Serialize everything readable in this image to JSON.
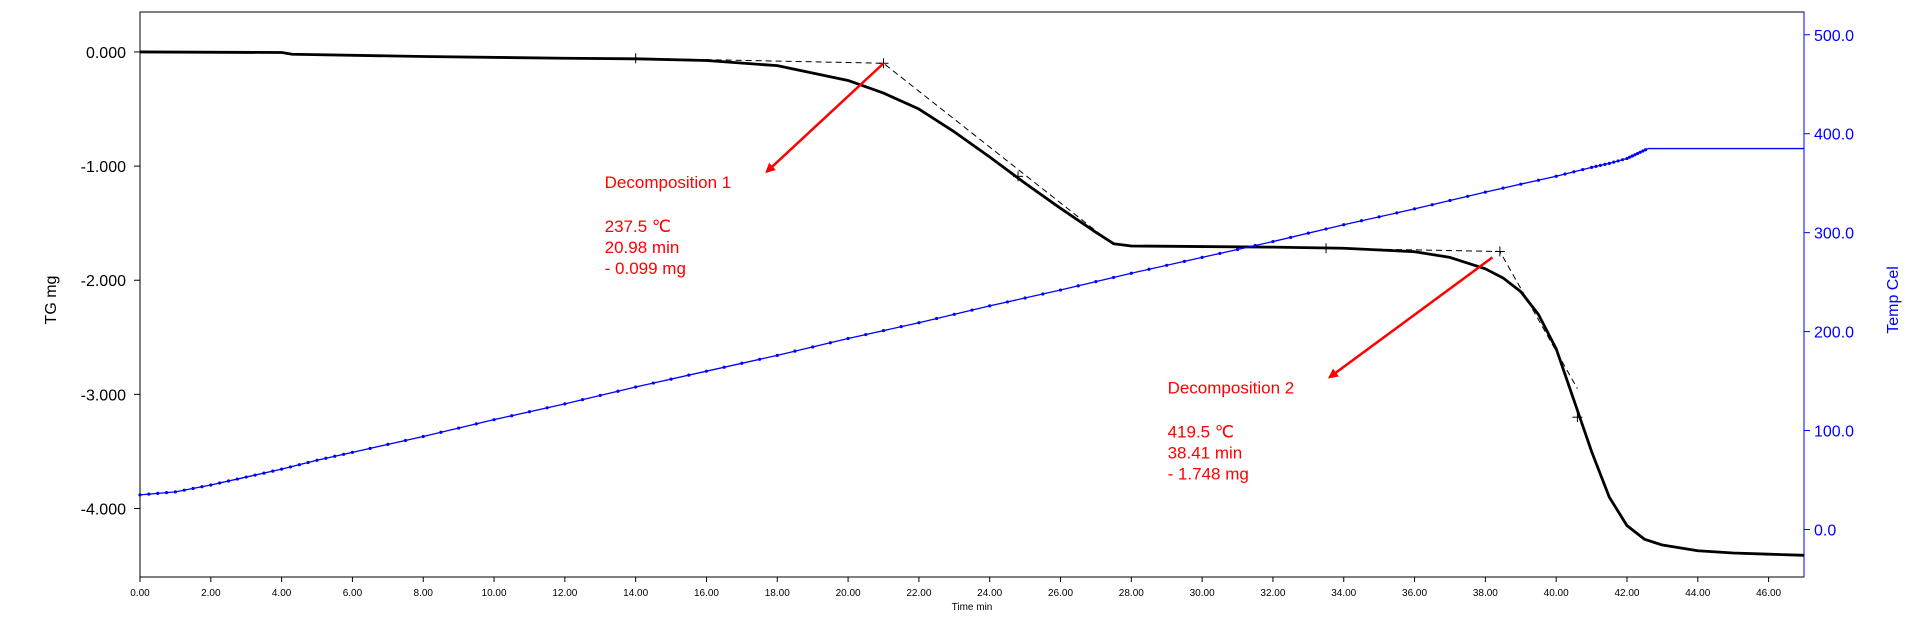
{
  "chart_data": {
    "type": "line",
    "title": "",
    "xlabel": "Time min",
    "ylabel_left": "TG mg",
    "ylabel_right": "Temp Cel",
    "xlim": [
      0,
      47
    ],
    "ylim_left": [
      -4.6,
      0.35
    ],
    "ylim_right": [
      -48,
      523
    ],
    "grid": false,
    "legend": "none",
    "colors": {
      "tg": "#000000",
      "temp": "#0000ff",
      "annotation": "#ff0000",
      "tangent": "#000000"
    },
    "x_ticks": [
      "0.00",
      "2.00",
      "4.00",
      "6.00",
      "8.00",
      "10.00",
      "12.00",
      "14.00",
      "16.00",
      "18.00",
      "20.00",
      "22.00",
      "24.00",
      "26.00",
      "28.00",
      "30.00",
      "32.00",
      "34.00",
      "36.00",
      "38.00",
      "40.00",
      "42.00",
      "44.00",
      "46.00"
    ],
    "y_ticks_left": [
      "0.000",
      "-1.000",
      "-2.000",
      "-3.000",
      "-4.000"
    ],
    "y_ticks_right": [
      "500.0",
      "400.0",
      "300.0",
      "200.0",
      "100.0",
      "0.0"
    ],
    "series": [
      {
        "name": "TG",
        "axis": "left",
        "x": [
          0,
          4,
          4.3,
          8,
          12,
          14,
          16,
          18,
          20,
          21,
          22,
          23,
          24,
          25,
          26,
          27,
          27.5,
          28,
          30,
          32,
          34,
          36,
          37,
          38,
          38.5,
          39,
          39.5,
          40,
          40.5,
          41,
          41.5,
          42,
          42.5,
          43,
          44,
          45,
          46,
          47
        ],
        "y": [
          0.0,
          -0.005,
          -0.02,
          -0.04,
          -0.055,
          -0.06,
          -0.075,
          -0.12,
          -0.25,
          -0.36,
          -0.5,
          -0.7,
          -0.92,
          -1.15,
          -1.37,
          -1.58,
          -1.68,
          -1.7,
          -1.705,
          -1.71,
          -1.72,
          -1.75,
          -1.8,
          -1.9,
          -1.98,
          -2.1,
          -2.3,
          -2.6,
          -3.05,
          -3.5,
          -3.9,
          -4.15,
          -4.27,
          -4.32,
          -4.37,
          -4.39,
          -4.4,
          -4.41
        ]
      },
      {
        "name": "Temp",
        "axis": "right",
        "x": [
          0,
          1,
          2,
          3,
          4,
          5,
          6,
          8,
          10,
          12,
          14,
          16,
          18,
          20,
          22,
          24,
          26,
          28,
          30,
          32,
          34,
          36,
          38,
          40,
          41,
          41.5,
          42,
          42.3,
          42.6,
          43,
          47
        ],
        "y": [
          35,
          38,
          45,
          53,
          61,
          70,
          78,
          94,
          111,
          127,
          144,
          160,
          176,
          193,
          209,
          226,
          242,
          259,
          275,
          291,
          308,
          324,
          341,
          357,
          366,
          370,
          375,
          380,
          385,
          385,
          385
        ]
      }
    ],
    "tangents": [
      {
        "x": [
          14.0,
          21.0,
          27.5
        ],
        "y": [
          -0.055,
          -0.099,
          -1.69
        ]
      },
      {
        "x": [
          33.5,
          38.41,
          40.6
        ],
        "y": [
          -1.72,
          -1.748,
          -2.95
        ]
      }
    ],
    "tick_markers": [
      {
        "x": 14.0,
        "y": -0.055
      },
      {
        "x": 21.0,
        "y": -0.099
      },
      {
        "x": 24.8,
        "y": -1.09
      },
      {
        "x": 33.5,
        "y": -1.72
      },
      {
        "x": 38.41,
        "y": -1.748
      },
      {
        "x": 40.6,
        "y": -3.2
      }
    ],
    "annotations": [
      {
        "label": "Decomposition 1",
        "lines": [
          "237.5 ℃",
          "20.98 min",
          "- 0.099 mg"
        ],
        "arrow_from": {
          "x": 21.0,
          "y": -0.1
        },
        "arrow_to": {
          "x": 17.7,
          "y": -1.05
        }
      },
      {
        "label": "Decomposition 2",
        "lines": [
          "419.5 ℃",
          "38.41 min",
          "- 1.748 mg"
        ],
        "arrow_from": {
          "x": 38.2,
          "y": -1.8
        },
        "arrow_to": {
          "x": 33.6,
          "y": -2.85
        }
      }
    ]
  }
}
